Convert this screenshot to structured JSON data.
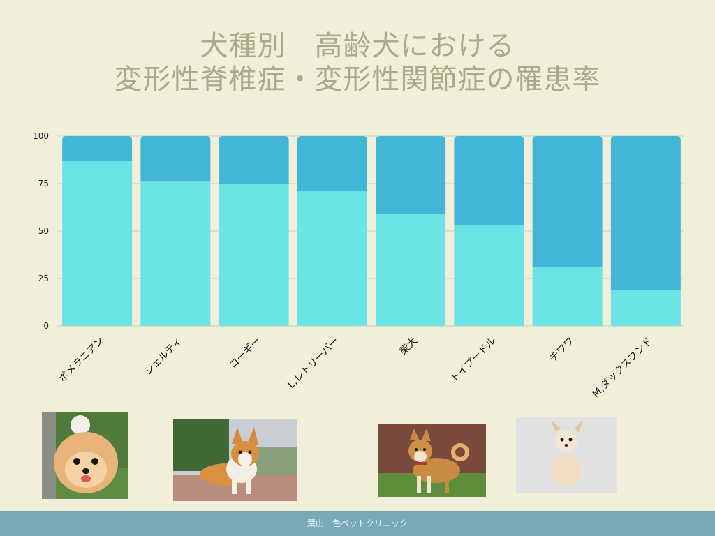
{
  "title": {
    "line1": "犬種別　高齢犬における",
    "line2": "変形性脊椎症・変形性関節症の罹患率"
  },
  "chart_data": {
    "type": "bar",
    "stacked": true,
    "categories": [
      "ポメラニアン",
      "シェルティ",
      "コーギー",
      "L,レトリーバー",
      "柴犬",
      "トイプードル",
      "チワワ",
      "M,ダックスフンド"
    ],
    "series": [
      {
        "values": [
          87,
          76,
          75,
          71,
          59,
          53,
          31,
          19
        ],
        "color": "#6ae4e5"
      },
      {
        "values": [
          13,
          24,
          25,
          29,
          41,
          47,
          69,
          81
        ],
        "color": "#41b6d6"
      }
    ],
    "ylim": [
      0,
      100
    ],
    "yticks": [
      0,
      25,
      50,
      75,
      100
    ],
    "grid": true
  },
  "photos": [
    {
      "name": "pomeranian-photo-icon"
    },
    {
      "name": "corgi-photo-icon"
    },
    {
      "name": "shiba-photo-icon"
    },
    {
      "name": "chihuahua-photo-icon"
    }
  ],
  "footer": {
    "text": "葉山一色ペットクリニック"
  }
}
